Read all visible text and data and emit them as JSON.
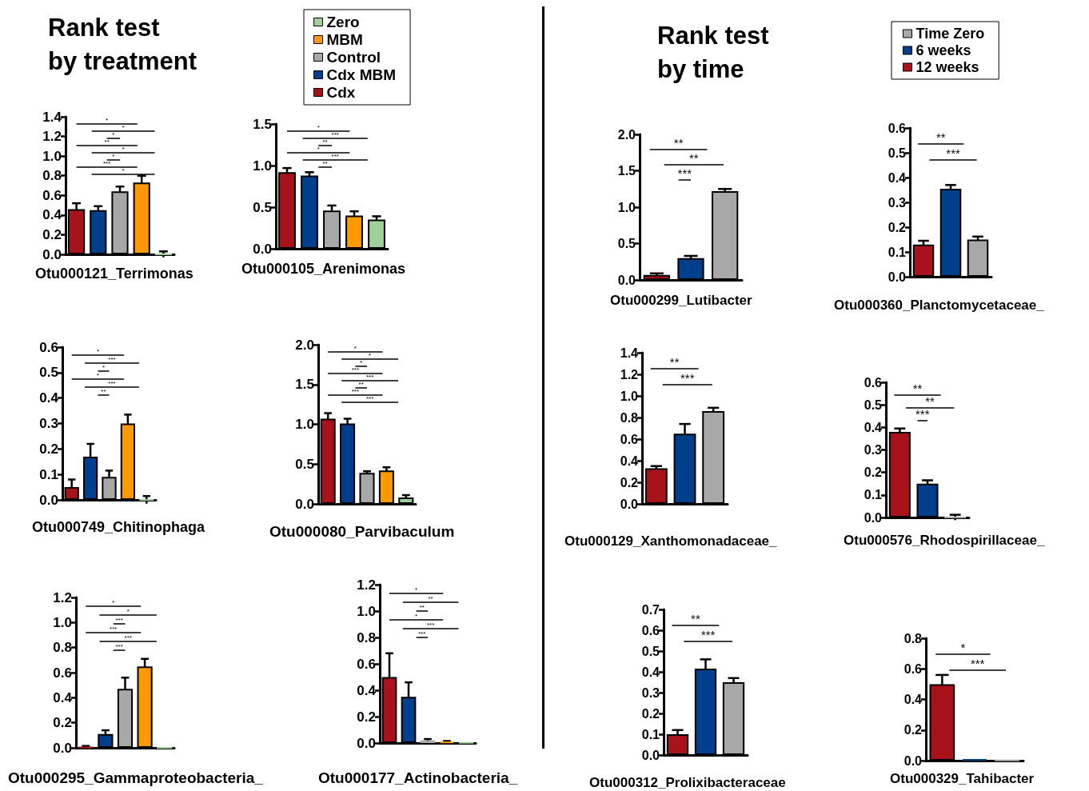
{
  "chart_data": [
    {
      "type": "bar",
      "title": "Rank test\nby treatment",
      "legend": "top",
      "xlabel": "Otu000121_Terrimonas",
      "categories": [
        null,
        null,
        null,
        null,
        null
      ],
      "tick_labels": "y",
      "ylim": [
        0,
        1.4
      ],
      "yticks": [
        {
          "value": 0,
          "label": "0.0"
        },
        0.2,
        0.4,
        0.6,
        0.8,
        {
          "value": 1,
          "label": "1.0"
        },
        1.2,
        1.4
      ],
      "series": [
        {
          "name": "Cdx",
          "color": "#a8121a",
          "values": [
            0.46,
            null,
            null,
            null,
            null
          ],
          "errors": [
            0.06,
            null,
            null,
            null,
            null
          ]
        },
        {
          "name": "Cdx MBM",
          "color": "#003f8c",
          "values": [
            null,
            0.45,
            null,
            null,
            null
          ],
          "errors": [
            null,
            0.04,
            null,
            null,
            null
          ]
        },
        {
          "name": "Control",
          "color": "#a8a8a8",
          "values": [
            null,
            null,
            0.64,
            null,
            null
          ],
          "errors": [
            null,
            null,
            0.05,
            null,
            null
          ]
        },
        {
          "name": "MBM",
          "color": "#ff9900",
          "values": [
            null,
            null,
            null,
            0.73,
            null
          ],
          "errors": [
            null,
            null,
            null,
            0.07,
            null
          ]
        },
        {
          "name": "Zero",
          "color": "#9fd09a",
          "values": [
            null,
            null,
            null,
            null,
            0
          ],
          "errors": [
            null,
            null,
            null,
            null,
            0.03
          ]
        }
      ],
      "annotations": [
        "*",
        "*",
        "*",
        "**",
        "*",
        "*",
        "***",
        "*"
      ]
    },
    {
      "type": "bar",
      "xlabel": "Otu000105_Arenimonas",
      "categories": [
        null,
        null,
        null,
        null,
        null
      ],
      "tick_labels": "y",
      "ylim": [
        0,
        1.5
      ],
      "yticks": [
        {
          "value": 0,
          "label": "0.0"
        },
        0.5,
        {
          "value": 1,
          "label": "1.0"
        },
        1.5
      ],
      "series": [
        {
          "color": "#a8121a",
          "values": [
            0.92,
            null,
            null,
            null,
            null
          ],
          "errors": [
            0.05,
            null,
            null,
            null,
            null
          ]
        },
        {
          "color": "#003f8c",
          "values": [
            null,
            0.88,
            null,
            null,
            null
          ],
          "errors": [
            null,
            0.04,
            null,
            null,
            null
          ]
        },
        {
          "color": "#a8a8a8",
          "values": [
            null,
            null,
            0.46,
            null,
            null
          ],
          "errors": [
            null,
            null,
            0.06,
            null,
            null
          ]
        },
        {
          "color": "#ff9900",
          "values": [
            null,
            null,
            null,
            0.4,
            null
          ],
          "errors": [
            null,
            null,
            null,
            0.05,
            null
          ]
        },
        {
          "color": "#9fd09a",
          "values": [
            null,
            null,
            null,
            null,
            0.35
          ],
          "errors": [
            null,
            null,
            null,
            null,
            0.04
          ]
        }
      ],
      "annotations": [
        "*",
        "***",
        "**",
        "*",
        "***",
        "**"
      ]
    },
    {
      "type": "bar",
      "xlabel": "Otu000749_Chitinophaga",
      "categories": [
        null,
        null,
        null,
        null,
        null
      ],
      "tick_labels": "y",
      "ylim": [
        0,
        0.6
      ],
      "yticks": [
        {
          "value": 0,
          "label": "0.0"
        },
        0.1,
        0.2,
        0.3,
        0.4,
        0.5,
        0.6
      ],
      "series": [
        {
          "color": "#a8121a",
          "values": [
            0.05,
            null,
            null,
            null,
            null
          ],
          "errors": [
            0.03,
            null,
            null,
            null,
            null
          ]
        },
        {
          "color": "#003f8c",
          "values": [
            null,
            0.17,
            null,
            null,
            null
          ],
          "errors": [
            null,
            0.05,
            null,
            null,
            null
          ]
        },
        {
          "color": "#a8a8a8",
          "values": [
            null,
            null,
            0.09,
            null,
            null
          ],
          "errors": [
            null,
            null,
            0.025,
            null,
            null
          ]
        },
        {
          "color": "#ff9900",
          "values": [
            null,
            null,
            null,
            0.3,
            null
          ],
          "errors": [
            null,
            null,
            null,
            0.035,
            null
          ]
        },
        {
          "color": "#9fd09a",
          "values": [
            null,
            null,
            null,
            null,
            0
          ],
          "errors": [
            null,
            null,
            null,
            null,
            0.015
          ]
        }
      ],
      "annotations": [
        "*",
        "***",
        "*",
        "*",
        "***",
        "**"
      ]
    },
    {
      "type": "bar",
      "xlabel": "Otu000080_Parvibaculum",
      "categories": [
        null,
        null,
        null,
        null,
        null
      ],
      "tick_labels": "y",
      "ylim": [
        0,
        2
      ],
      "yticks": [
        {
          "value": 0,
          "label": "0.0"
        },
        0.5,
        {
          "value": 1,
          "label": "1.0"
        },
        1.5,
        {
          "value": 2,
          "label": "2.0"
        }
      ],
      "series": [
        {
          "color": "#a8121a",
          "values": [
            1.07,
            null,
            null,
            null,
            null
          ],
          "errors": [
            0.07,
            null,
            null,
            null,
            null
          ]
        },
        {
          "color": "#003f8c",
          "values": [
            null,
            1.01,
            null,
            null,
            null
          ],
          "errors": [
            null,
            0.06,
            null,
            null,
            null
          ]
        },
        {
          "color": "#a8a8a8",
          "values": [
            null,
            null,
            0.39,
            null,
            null
          ],
          "errors": [
            null,
            null,
            0.02,
            null,
            null
          ]
        },
        {
          "color": "#ff9900",
          "values": [
            null,
            null,
            null,
            0.42,
            null
          ],
          "errors": [
            null,
            null,
            null,
            0.04,
            null
          ]
        },
        {
          "color": "#9fd09a",
          "values": [
            null,
            null,
            null,
            null,
            0.08
          ],
          "errors": [
            null,
            null,
            null,
            null,
            0.03
          ]
        }
      ],
      "annotations": [
        "*",
        "*",
        "*",
        "***",
        "***",
        "**",
        "***",
        "***"
      ]
    },
    {
      "type": "bar",
      "xlabel": "Otu000295_Gammaproteobacteria_",
      "categories": [
        null,
        null,
        null,
        null,
        null
      ],
      "tick_labels": "y",
      "ylim": [
        0,
        1.2
      ],
      "yticks": [
        {
          "value": 0,
          "label": "0.0"
        },
        0.2,
        0.4,
        0.6,
        0.8,
        {
          "value": 1,
          "label": "1.0"
        },
        1.2
      ],
      "series": [
        {
          "color": "#a8121a",
          "values": [
            0.005,
            null,
            null,
            null,
            null
          ],
          "errors": [
            0.01,
            null,
            null,
            null,
            null
          ]
        },
        {
          "color": "#003f8c",
          "values": [
            null,
            0.11,
            null,
            null,
            null
          ],
          "errors": [
            null,
            0.03,
            null,
            null,
            null
          ]
        },
        {
          "color": "#a8a8a8",
          "values": [
            null,
            null,
            0.47,
            null,
            null
          ],
          "errors": [
            null,
            null,
            0.09,
            null,
            null
          ]
        },
        {
          "color": "#ff9900",
          "values": [
            null,
            null,
            null,
            0.65,
            null
          ],
          "errors": [
            null,
            null,
            null,
            0.06,
            null
          ]
        },
        {
          "color": "#9fd09a",
          "values": [
            null,
            null,
            null,
            null,
            0
          ],
          "errors": [
            null,
            null,
            null,
            null,
            null
          ]
        }
      ],
      "annotations": [
        "*",
        "*",
        "***",
        "***",
        "***",
        "***"
      ]
    },
    {
      "type": "bar",
      "xlabel": "Otu000177_Actinobacteria_",
      "categories": [
        null,
        null,
        null,
        null,
        null
      ],
      "tick_labels": "y",
      "ylim": [
        0,
        1.2
      ],
      "yticks": [
        {
          "value": 0,
          "label": "0.0"
        },
        0.2,
        0.4,
        0.6,
        0.8,
        {
          "value": 1,
          "label": "1.0"
        },
        1.2
      ],
      "series": [
        {
          "color": "#a8121a",
          "values": [
            0.5,
            null,
            null,
            null,
            null
          ],
          "errors": [
            0.18,
            null,
            null,
            null,
            null
          ]
        },
        {
          "color": "#003f8c",
          "values": [
            null,
            0.35,
            null,
            null,
            null
          ],
          "errors": [
            null,
            0.11,
            null,
            null,
            null
          ]
        },
        {
          "color": "#a8a8a8",
          "values": [
            null,
            null,
            0.02,
            null,
            null
          ],
          "errors": [
            null,
            null,
            0.01,
            null,
            null
          ]
        },
        {
          "color": "#ff9900",
          "values": [
            null,
            null,
            null,
            0.01,
            null
          ],
          "errors": [
            null,
            null,
            null,
            0.005,
            null
          ]
        },
        {
          "color": "#9fd09a",
          "values": [
            null,
            null,
            null,
            null,
            0.003
          ],
          "errors": [
            null,
            null,
            null,
            null,
            null
          ]
        }
      ],
      "annotations": [
        "*",
        "**",
        "**",
        "*",
        "***",
        "***"
      ]
    },
    {
      "type": "bar",
      "title": "Rank test\nby time",
      "legend": "top",
      "xlabel": "Otu000299_Lutibacter",
      "categories": [
        null,
        null,
        null
      ],
      "tick_labels": "y",
      "ylim": [
        0,
        2
      ],
      "yticks": [
        {
          "value": 0,
          "label": "0.0"
        },
        0.5,
        {
          "value": 1,
          "label": "1.0"
        },
        1.5,
        {
          "value": 2,
          "label": "2.0"
        }
      ],
      "series": [
        {
          "name": "12 weeks",
          "color": "#a8121a",
          "values": [
            0.07,
            null,
            null
          ],
          "errors": [
            0.02,
            null,
            null
          ]
        },
        {
          "name": "6 weeks",
          "color": "#003f8c",
          "values": [
            null,
            0.3,
            null
          ],
          "errors": [
            null,
            0.03,
            null
          ]
        },
        {
          "name": "Time Zero",
          "color": "#a8a8a8",
          "values": [
            null,
            null,
            1.22
          ],
          "errors": [
            null,
            null,
            0.03
          ]
        }
      ],
      "annotations": [
        "**",
        "**",
        "***"
      ]
    },
    {
      "type": "bar",
      "xlabel": "Otu000360_Planctomycetaceae_",
      "categories": [
        null,
        null,
        null
      ],
      "tick_labels": "y",
      "ylim": [
        0,
        0.6
      ],
      "yticks": [
        {
          "value": 0,
          "label": "0.0"
        },
        0.1,
        0.2,
        0.3,
        0.4,
        0.5,
        0.6
      ],
      "series": [
        {
          "color": "#a8121a",
          "values": [
            0.13,
            null,
            null
          ],
          "errors": [
            0.015,
            null,
            null
          ]
        },
        {
          "color": "#003f8c",
          "values": [
            null,
            0.355,
            null
          ],
          "errors": [
            null,
            0.015,
            null
          ]
        },
        {
          "color": "#a8a8a8",
          "values": [
            null,
            null,
            0.15
          ],
          "errors": [
            null,
            null,
            0.012
          ]
        }
      ],
      "annotations": [
        "**",
        "***"
      ]
    },
    {
      "type": "bar",
      "xlabel": "Otu000129_Xanthomonadaceae_",
      "categories": [
        null,
        null,
        null
      ],
      "tick_labels": "y",
      "ylim": [
        0,
        1.4
      ],
      "yticks": [
        {
          "value": 0,
          "label": "0.0"
        },
        0.2,
        0.4,
        0.6,
        0.8,
        {
          "value": 1,
          "label": "1.0"
        },
        1.2,
        1.4
      ],
      "series": [
        {
          "color": "#a8121a",
          "values": [
            0.33,
            null,
            null
          ],
          "errors": [
            0.02,
            null,
            null
          ]
        },
        {
          "color": "#003f8c",
          "values": [
            null,
            0.65,
            null
          ],
          "errors": [
            null,
            0.09,
            null
          ]
        },
        {
          "color": "#a8a8a8",
          "values": [
            null,
            null,
            0.86
          ],
          "errors": [
            null,
            null,
            0.03
          ]
        }
      ],
      "annotations": [
        "**",
        "***"
      ]
    },
    {
      "type": "bar",
      "xlabel": "Otu000576_Rhodospirillaceae_",
      "categories": [
        null,
        null,
        null
      ],
      "tick_labels": "y",
      "ylim": [
        0,
        0.6
      ],
      "yticks": [
        {
          "value": 0,
          "label": "0.0"
        },
        0.1,
        0.2,
        0.3,
        0.4,
        0.5,
        0.6
      ],
      "series": [
        {
          "color": "#a8121a",
          "values": [
            0.38,
            null,
            null
          ],
          "errors": [
            0.015,
            null,
            null
          ]
        },
        {
          "color": "#003f8c",
          "values": [
            null,
            0.15,
            null
          ],
          "errors": [
            null,
            0.015,
            null
          ]
        },
        {
          "color": "#a8a8a8",
          "values": [
            null,
            null,
            0
          ],
          "errors": [
            null,
            null,
            0.012
          ]
        }
      ],
      "annotations": [
        "**",
        "**",
        "***"
      ]
    },
    {
      "type": "bar",
      "xlabel": "Otu000312_Prolixibacteraceae",
      "categories": [
        null,
        null,
        null
      ],
      "tick_labels": "y",
      "ylim": [
        0,
        0.7
      ],
      "yticks": [
        {
          "value": 0,
          "label": "0.0"
        },
        0.1,
        0.2,
        0.3,
        0.4,
        0.5,
        0.6,
        0.7
      ],
      "series": [
        {
          "color": "#a8121a",
          "values": [
            0.1,
            null,
            null
          ],
          "errors": [
            0.02,
            null,
            null
          ]
        },
        {
          "color": "#003f8c",
          "values": [
            null,
            0.415,
            null
          ],
          "errors": [
            null,
            0.045,
            null
          ]
        },
        {
          "color": "#a8a8a8",
          "values": [
            null,
            null,
            0.35
          ],
          "errors": [
            null,
            null,
            0.02
          ]
        }
      ],
      "annotations": [
        "**",
        "***"
      ]
    },
    {
      "type": "bar",
      "xlabel": "Otu000329_Tahibacter",
      "categories": [
        null,
        null,
        null
      ],
      "tick_labels": "y",
      "ylim": [
        0,
        0.8
      ],
      "yticks": [
        {
          "value": 0,
          "label": "0.0"
        },
        0.2,
        0.4,
        0.6,
        0.8
      ],
      "series": [
        {
          "color": "#a8121a",
          "values": [
            0.5,
            null,
            null
          ],
          "errors": [
            0.06,
            null,
            null
          ]
        },
        {
          "color": "#003f8c",
          "values": [
            null,
            0.01,
            null
          ],
          "errors": [
            null,
            null,
            null
          ]
        },
        {
          "color": "#a8a8a8",
          "values": [
            null,
            null,
            0.003
          ],
          "errors": [
            null,
            null,
            null
          ]
        }
      ],
      "annotations": [
        "*",
        "***"
      ]
    }
  ]
}
